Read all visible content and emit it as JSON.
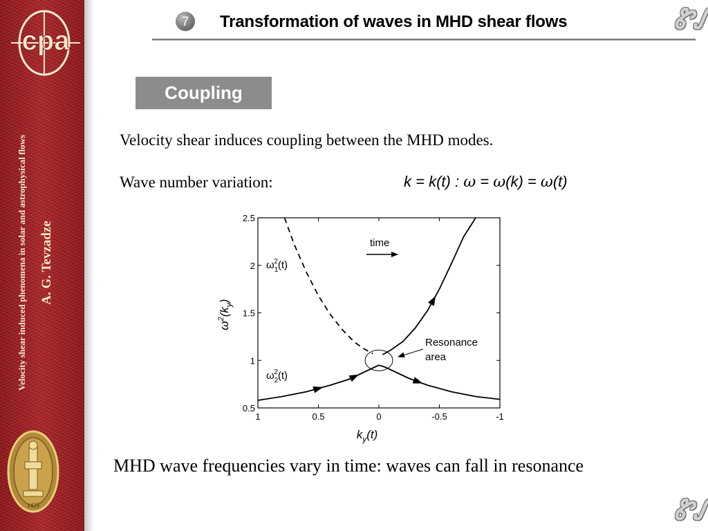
{
  "sidebar": {
    "logo_text": "cpa",
    "series_title": "Velocity shear induced phenomena in solar and astrophysical flows",
    "author": "A. G. Tevzadze",
    "seal_year": "1425"
  },
  "header": {
    "slide_number": "7",
    "title": "Transformation of waves in MHD shear flows",
    "ornament": "ᏑᏁ"
  },
  "section": {
    "label": "Coupling"
  },
  "body": {
    "line1": "Velocity shear induces coupling between the MHD modes.",
    "line2_label": "Wave number variation:",
    "formula": {
      "part1": "k = k(t) : ",
      "w1": "ω",
      "part2": " = ",
      "w2": "ω",
      "part3": "(k) = ",
      "w3": "ω",
      "part4": "(t)"
    },
    "caption": "MHD wave frequencies vary in time: waves can fall in resonance"
  },
  "chart_data": {
    "type": "line",
    "xlabel": "k_y(t)",
    "ylabel": "ω²(k_y)",
    "xlim": [
      1,
      -1
    ],
    "ylim": [
      0.5,
      2.5
    ],
    "x_reversed": true,
    "x_ticks": [
      1,
      0.5,
      0,
      -0.5,
      -1
    ],
    "x_tick_labels": [
      "1",
      "0.5",
      "0",
      "-0.5",
      "-1"
    ],
    "y_ticks": [
      0.5,
      1,
      1.5,
      2,
      2.5
    ],
    "y_tick_labels": [
      "0.5",
      "1",
      "1.5",
      "2",
      "2.5"
    ],
    "grid": false,
    "series": [
      {
        "name": "ω₁²(t)",
        "label_main": "ω",
        "label_sub": "1",
        "label_sup": "2",
        "label_arg": "(t)",
        "style": "dashed",
        "x": [
          0.78,
          0.7,
          0.6,
          0.5,
          0.4,
          0.3,
          0.2,
          0.12,
          0.05
        ],
        "y": [
          2.5,
          2.22,
          1.93,
          1.68,
          1.48,
          1.32,
          1.19,
          1.12,
          1.07
        ]
      },
      {
        "name": "ω₁²(t)",
        "style": "solid",
        "x": [
          -0.03,
          -0.1,
          -0.2,
          -0.3,
          -0.4,
          -0.5,
          -0.6,
          -0.7,
          -0.8
        ],
        "y": [
          1.06,
          1.11,
          1.2,
          1.34,
          1.52,
          1.75,
          2.02,
          2.3,
          2.5
        ],
        "arrow_at_index": 4
      },
      {
        "name": "ω₂²(t)",
        "label_main": "ω",
        "label_sub": "2",
        "label_sup": "2",
        "label_arg": "(t)",
        "style": "solid",
        "x": [
          1,
          0.8,
          0.6,
          0.4,
          0.25,
          0.15,
          0.05,
          0
        ],
        "y": [
          0.58,
          0.62,
          0.67,
          0.74,
          0.8,
          0.86,
          0.92,
          0.95
        ],
        "arrow_at_index": [
          2,
          4
        ]
      },
      {
        "name": "ω₂²(t)",
        "style": "solid",
        "x": [
          0,
          -0.05,
          -0.15,
          -0.25,
          -0.4,
          -0.6,
          -0.8,
          -1
        ],
        "y": [
          0.95,
          0.93,
          0.87,
          0.81,
          0.74,
          0.67,
          0.62,
          0.59
        ],
        "arrow_at_index": 3
      }
    ],
    "annotations": {
      "time_label": "time",
      "resonance_label_1": "Resonance",
      "resonance_label_2": "area"
    }
  }
}
